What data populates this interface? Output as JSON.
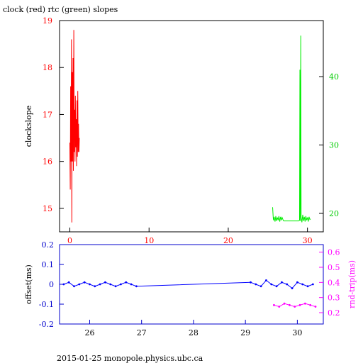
{
  "title": "clock (red) rtc (green) slopes",
  "footer": "2015-01-25 monopole.physics.ubc.ca",
  "colors": {
    "clock": "#ff0000",
    "rtc": "#00ee00",
    "offset": "#0000ff",
    "roundtrip": "#ff00ff",
    "axis": "#000000"
  },
  "chart_data": [
    {
      "type": "line",
      "panel": "top",
      "title": "clock (red) rtc (green) slopes",
      "ylabel": "clockslope",
      "xlim": [
        -1.3,
        32
      ],
      "ylim_left": [
        14.5,
        19
      ],
      "ylim_right": [
        17.3,
        48.2
      ],
      "x_ticks": [
        0,
        10,
        20,
        30
      ],
      "y_ticks_left": [
        15,
        16,
        17,
        18,
        19
      ],
      "y_ticks_right": [
        20,
        30,
        40
      ],
      "series": [
        {
          "axis": "left",
          "color": "#ff0000",
          "x": [
            0.0,
            0.05,
            0.1,
            0.15,
            0.2,
            0.25,
            0.3,
            0.35,
            0.4,
            0.45,
            0.5,
            0.55,
            0.6,
            0.65,
            0.7,
            0.75,
            0.8,
            0.85,
            0.9,
            0.95,
            1.0,
            1.05,
            1.1,
            1.15,
            1.2
          ],
          "y": [
            16.4,
            15.4,
            17.6,
            16.0,
            18.6,
            14.7,
            17.9,
            16.0,
            18.2,
            15.8,
            18.8,
            16.2,
            17.1,
            16.0,
            17.4,
            16.3,
            16.9,
            15.9,
            17.3,
            16.1,
            17.5,
            16.2,
            16.8,
            16.2,
            16.5
          ]
        },
        {
          "axis": "right",
          "color": "#00ee00",
          "x": [
            25.6,
            25.7,
            25.8,
            25.9,
            26.0,
            26.1,
            26.2,
            26.3,
            26.4,
            26.5,
            26.6,
            26.7,
            26.8,
            26.9,
            27.0,
            28.0,
            28.9,
            29.0,
            29.05,
            29.1,
            29.15,
            29.2,
            29.3,
            29.4,
            29.5,
            29.6,
            29.7,
            29.8,
            29.9,
            30.0,
            30.1,
            30.2,
            30.3,
            30.4
          ],
          "y": [
            20.9,
            19.0,
            19.5,
            18.8,
            19.6,
            18.9,
            19.4,
            19.0,
            19.6,
            18.8,
            19.5,
            19.0,
            19.4,
            19.1,
            18.9,
            18.9,
            18.9,
            19.0,
            41.0,
            18.9,
            46.0,
            19.5,
            18.7,
            19.8,
            18.9,
            19.5,
            18.8,
            19.6,
            19.0,
            19.4,
            18.8,
            19.5,
            19.1,
            19.2
          ]
        }
      ]
    },
    {
      "type": "scatter",
      "panel": "bottom",
      "ylabel_left": "offset(ms)",
      "ylabel_right": "rnd-trip(ms)",
      "xlim": [
        25.42,
        30.5
      ],
      "ylim_left": [
        -0.2,
        0.2
      ],
      "ylim_right": [
        0.125,
        0.65
      ],
      "x_ticks": [
        26,
        27,
        28,
        29,
        30
      ],
      "y_ticks_left": [
        -0.2,
        -0.1,
        0,
        0.1,
        0.2
      ],
      "y_ticks_right": [
        0.2,
        0.3,
        0.4,
        0.5,
        0.6
      ],
      "series": [
        {
          "name": "offset",
          "axis": "left",
          "color": "#0000ff",
          "x": [
            25.5,
            25.6,
            25.7,
            25.8,
            25.9,
            26.0,
            26.1,
            26.2,
            26.3,
            26.4,
            26.5,
            26.6,
            26.7,
            26.8,
            26.9,
            29.1,
            29.2,
            29.3,
            29.4,
            29.5,
            29.6,
            29.7,
            29.8,
            29.9,
            30.0,
            30.1,
            30.2,
            30.3
          ],
          "y": [
            0.0,
            0.01,
            -0.01,
            0.0,
            0.01,
            0.0,
            -0.01,
            0.0,
            0.01,
            0.0,
            -0.01,
            0.0,
            0.01,
            0.0,
            -0.01,
            0.01,
            0.0,
            -0.01,
            0.02,
            0.0,
            -0.01,
            0.01,
            0.0,
            -0.02,
            0.01,
            0.0,
            -0.01,
            0.0
          ]
        },
        {
          "name": "rnd-trip",
          "axis": "right",
          "color": "#ff00ff",
          "x": [
            29.55,
            29.65,
            29.75,
            29.85,
            29.95,
            30.05,
            30.15,
            30.25,
            30.35
          ],
          "y": [
            0.25,
            0.24,
            0.26,
            0.25,
            0.24,
            0.25,
            0.26,
            0.25,
            0.24
          ]
        }
      ]
    }
  ]
}
